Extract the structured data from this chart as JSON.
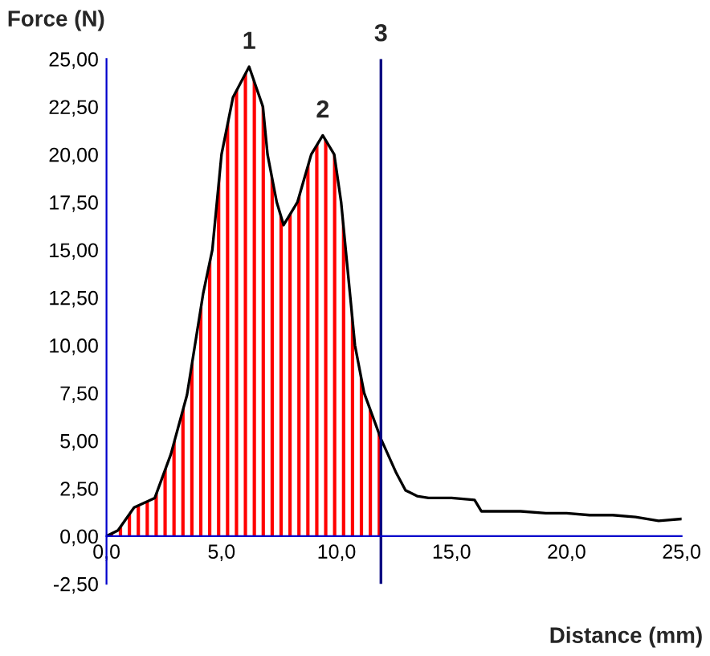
{
  "chart_data": {
    "type": "line",
    "xlabel": "Distance (mm)",
    "ylabel": "Force (N)",
    "series": [
      {
        "type": "area",
        "color": "#ff0000",
        "x": [
          0,
          0.5,
          1.2,
          2.1,
          2.8,
          3.5,
          4.2,
          4.6,
          5.0,
          5.5,
          6.2,
          6.8,
          7.0,
          7.4,
          7.7,
          8.3,
          8.9,
          9.4,
          9.9,
          10.2,
          10.6,
          10.8,
          11.2,
          11.93
        ],
        "values": [
          0,
          0.3,
          1.5,
          2.0,
          4.3,
          7.4,
          12.7,
          15.0,
          20.0,
          23.0,
          24.6,
          22.5,
          20.0,
          17.5,
          16.3,
          17.5,
          20.0,
          21.0,
          20.0,
          17.5,
          12.5,
          10.0,
          7.5,
          5.1
        ]
      },
      {
        "type": "line",
        "color": "#000000",
        "x": [
          11.93,
          12.6,
          13.0,
          13.5,
          14.0,
          15.0,
          16.0,
          16.3,
          17.0,
          18.0,
          19.1,
          20.0,
          21.0,
          22.0,
          23.0,
          24.0,
          25.0
        ],
        "values": [
          5.1,
          3.3,
          2.4,
          2.1,
          2.0,
          2.0,
          1.9,
          1.3,
          1.3,
          1.3,
          1.2,
          1.2,
          1.1,
          1.1,
          1.0,
          0.8,
          0.9
        ]
      }
    ],
    "xlim": [
      0,
      25
    ],
    "ylim": [
      -2.5,
      25
    ],
    "xticks": [
      {
        "value": 0,
        "label": "0,0"
      },
      {
        "value": 5,
        "label": "5,0"
      },
      {
        "value": 10,
        "label": "10,0"
      },
      {
        "value": 15,
        "label": "15,0"
      },
      {
        "value": 20,
        "label": "20,0"
      },
      {
        "value": 25,
        "label": "25,0"
      }
    ],
    "yticks": [
      {
        "value": -2.5,
        "label": "-2,50"
      },
      {
        "value": 0,
        "label": "0,00"
      },
      {
        "value": 2.5,
        "label": "2,50"
      },
      {
        "value": 5,
        "label": "5,00"
      },
      {
        "value": 7.5,
        "label": "7,50"
      },
      {
        "value": 10,
        "label": "10,00"
      },
      {
        "value": 12.5,
        "label": "12,50"
      },
      {
        "value": 15,
        "label": "15,00"
      },
      {
        "value": 17.5,
        "label": "17,50"
      },
      {
        "value": 20,
        "label": "20,00"
      },
      {
        "value": 22.5,
        "label": "22,50"
      },
      {
        "value": 25,
        "label": "25,00"
      }
    ],
    "ref_lines": [
      {
        "axis": "x",
        "value": 11.93,
        "color": "#000080"
      }
    ],
    "annotations": [
      {
        "text": "1",
        "x": 6.2,
        "y": 24.6
      },
      {
        "text": "2",
        "x": 9.4,
        "y": 21.0
      },
      {
        "text": "3",
        "x": 11.93,
        "y": 25
      }
    ],
    "grid": false,
    "legend": false
  }
}
